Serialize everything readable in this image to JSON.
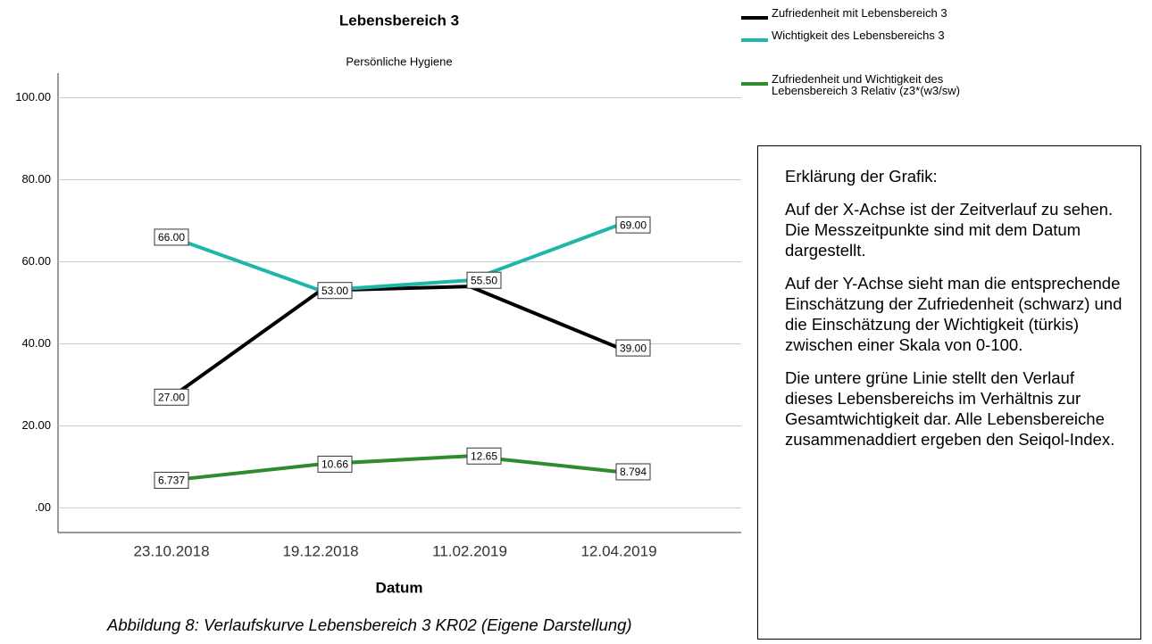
{
  "chart_data": {
    "type": "line",
    "title": "Lebensbereich 3",
    "subtitle": "Persönliche Hygiene",
    "x_label": "Datum",
    "categories": [
      "23.10.2018",
      "19.12.2018",
      "11.02.2019",
      "12.04.2019"
    ],
    "series": [
      {
        "name": "Zufriedenheit mit Lebensbereich 3",
        "color": "#000000",
        "values": [
          27,
          53,
          54,
          39
        ],
        "value_labels": [
          "27.00",
          null,
          null,
          "39.00"
        ]
      },
      {
        "name": "Wichtigkeit des Lebensbereichs 3",
        "color": "#1fb5a8",
        "values": [
          66,
          53,
          55.5,
          69
        ],
        "value_labels": [
          "66.00",
          "53.00",
          "55.50",
          "69.00"
        ]
      },
      {
        "name": "Zufriedenheit und Wichtigkeit des Lebensbereich 3 Relativ (z3*(w3/sw)",
        "color": "#2e8b2e",
        "values": [
          6.737,
          10.66,
          12.65,
          8.794
        ],
        "value_labels": [
          "6.737",
          "10.66",
          "12.65",
          "8.794"
        ]
      }
    ],
    "ylim": [
      -6,
      106
    ],
    "yticks": [
      {
        "value": 0,
        "label": ".00"
      },
      {
        "value": 20,
        "label": "20.00"
      },
      {
        "value": 40,
        "label": "40.00"
      },
      {
        "value": 60,
        "label": "60.00"
      },
      {
        "value": 80,
        "label": "80.00"
      },
      {
        "value": 100,
        "label": "100.00"
      }
    ],
    "grid": true
  },
  "explanation": {
    "heading": "Erklärung der Grafik:",
    "paragraphs": [
      "Auf der X-Achse ist der Zeitverlauf zu sehen. Die Messzeitpunkte sind mit dem Datum dargestellt.",
      "Auf der Y-Achse sieht man die entsprechende Einschätzung der Zufriedenheit (schwarz) und die Einschätzung der Wichtigkeit (türkis) zwischen einer Skala von 0-100.",
      "Die untere grüne Linie stellt den Verlauf dieses Lebensbereichs im Verhältnis zur Gesamtwichtigkeit dar. Alle Lebensbereiche zusammenaddiert ergeben den Seiqol-Index."
    ]
  },
  "caption": "Abbildung 8: Verlaufskurve Lebensbereich 3 KR02 (Eigene Darstellung)"
}
